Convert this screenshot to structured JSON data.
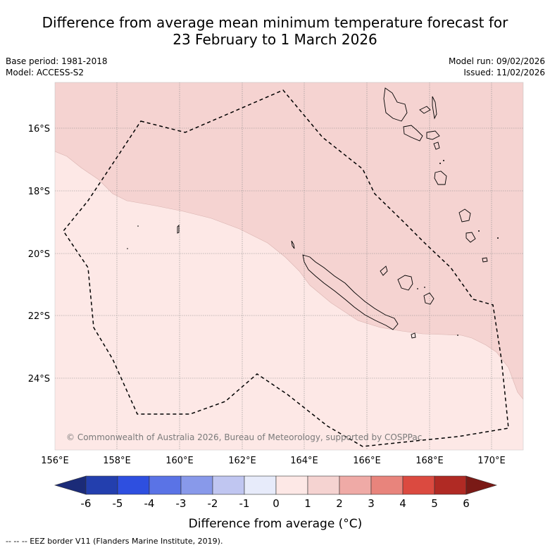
{
  "title_line1": "Difference from average mean minimum temperature forecast for",
  "title_line2": "23 February to 1 March 2026",
  "meta_left": {
    "base_period": "Base period: 1981-2018",
    "model": "Model: ACCESS-S2"
  },
  "meta_right": {
    "model_run": "Model run: 09/02/2026",
    "issued": "Issued: 11/02/2026"
  },
  "map": {
    "lat_labels": [
      "16°S",
      "18°S",
      "20°S",
      "22°S",
      "24°S"
    ],
    "lon_labels": [
      "156°E",
      "158°E",
      "160°E",
      "162°E",
      "164°E",
      "166°E",
      "168°E",
      "170°E"
    ],
    "copyright": "© Commonwealth of Australia 2026, Bureau of Meteorology, supported by COSPPac",
    "category_colors": {
      "0_to_1": "#fde8e6",
      "1_to_2": "#f5d3d1"
    }
  },
  "colorbar": {
    "ticks": [
      "-6",
      "-5",
      "-4",
      "-3",
      "-2",
      "-1",
      "0",
      "1",
      "2",
      "3",
      "4",
      "5",
      "6"
    ],
    "colors": [
      "#1b2b78",
      "#233fae",
      "#2e4fe0",
      "#5a73e6",
      "#8899ea",
      "#c0c6f1",
      "#e7ebfa",
      "#fde8e6",
      "#f5d3d1",
      "#efaaa6",
      "#e8847c",
      "#db4a40",
      "#b02a24",
      "#7a1a16"
    ],
    "label": "Difference from average (°C)"
  },
  "footer": "--  --  -- EEZ border V11 (Flanders Marine Institute, 2019)."
}
